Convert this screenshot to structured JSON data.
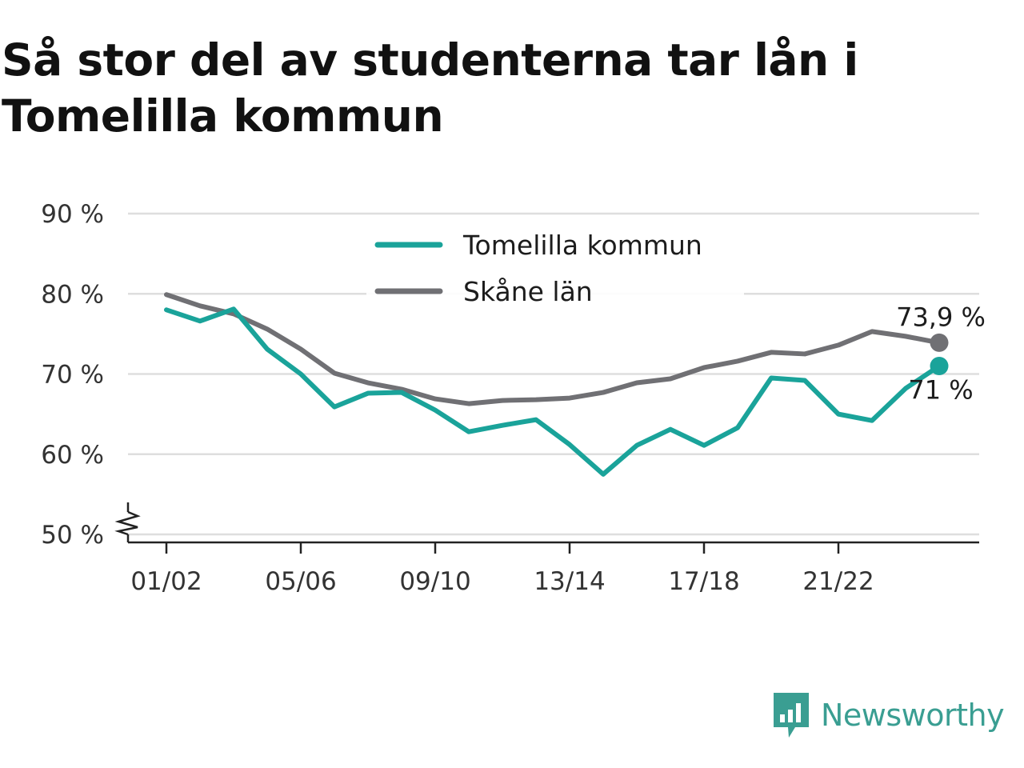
{
  "title": "Så stor del av studenterna tar lån i Tomelilla kommun",
  "brand": {
    "name": "Newsworthy",
    "logo_icon": "bar-chart-speech-bubble-icon",
    "color": "#3a9e92"
  },
  "chart_data": {
    "type": "line",
    "title": "Så stor del av studenterna tar lån i Tomelilla kommun",
    "xlabel": "",
    "ylabel": "",
    "ylim": [
      50,
      90
    ],
    "y_axis_break": true,
    "y_ticks": [
      50,
      60,
      70,
      80,
      90
    ],
    "y_tick_labels": [
      "50 %",
      "60 %",
      "70 %",
      "80 %",
      "90 %"
    ],
    "x_ticks": [
      "01/02",
      "05/06",
      "09/10",
      "13/14",
      "17/18",
      "21/22"
    ],
    "grid": true,
    "legend_position": "top-center",
    "x": [
      "01/02",
      "02/03",
      "03/04",
      "04/05",
      "05/06",
      "06/07",
      "07/08",
      "08/09",
      "09/10",
      "10/11",
      "11/12",
      "12/13",
      "13/14",
      "14/15",
      "15/16",
      "16/17",
      "17/18",
      "18/19",
      "19/20",
      "20/21",
      "21/22",
      "22/23",
      "23/24",
      "24/25"
    ],
    "series": [
      {
        "name": "Tomelilla kommun",
        "color": "#1aa39a",
        "values": [
          78,
          76.6,
          78.1,
          73.1,
          70,
          65.9,
          67.6,
          67.7,
          65.5,
          62.8,
          63.6,
          64.3,
          61.2,
          57.5,
          61.1,
          63.1,
          61.1,
          63.3,
          69.5,
          69.2,
          65,
          64.2,
          68.2,
          71
        ],
        "end_label": "71 %"
      },
      {
        "name": "Skåne län",
        "color": "#707074",
        "values": [
          79.9,
          78.5,
          77.5,
          75.6,
          73.1,
          70.1,
          68.9,
          68.1,
          66.9,
          66.3,
          66.7,
          66.8,
          67,
          67.7,
          68.9,
          69.4,
          70.8,
          71.6,
          72.7,
          72.5,
          73.6,
          75.3,
          74.7,
          73.9
        ],
        "end_label": "73,9 %"
      }
    ]
  }
}
